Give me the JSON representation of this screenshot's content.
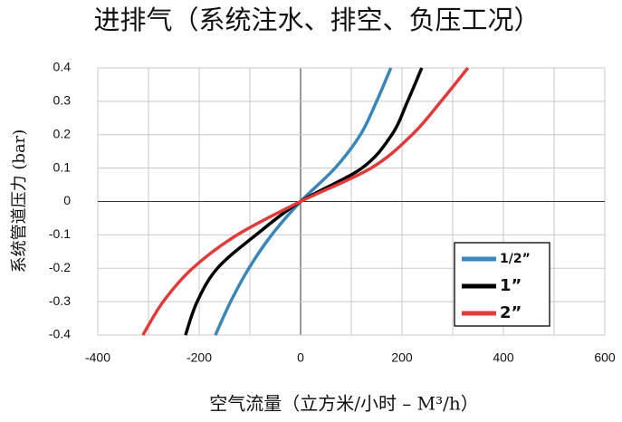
{
  "chart_data": {
    "type": "line",
    "title": "进排气（系统注水、排空、负压工况）",
    "x_label": "空气流量（立方米/小时 – M³/h）",
    "y_label": "系统管道压力 (bar)",
    "xlim": [
      -400,
      600
    ],
    "xticks": [
      -400,
      -200,
      0,
      200,
      400,
      600
    ],
    "xminor": [
      -300,
      -100,
      100,
      300,
      500
    ],
    "ylim": [
      -0.4,
      0.4
    ],
    "yticks": [
      0.4,
      0.3,
      0.2,
      0.1,
      0,
      -0.1,
      -0.2,
      -0.3,
      -0.4
    ],
    "grid": true,
    "legend": "lower right",
    "series": [
      {
        "name": "1/2”",
        "color": "#3a86b8",
        "x": [
          -168,
          -138,
          -102,
          -57,
          0,
          68,
          118,
          150,
          178
        ],
        "values": [
          -0.4,
          -0.3,
          -0.2,
          -0.1,
          0,
          0.1,
          0.2,
          0.3,
          0.4
        ]
      },
      {
        "name": "1”",
        "color": "#000000",
        "x": [
          -227,
          -204,
          -164,
          -88,
          0,
          121,
          180,
          211,
          239
        ],
        "values": [
          -0.4,
          -0.3,
          -0.2,
          -0.1,
          0,
          0.1,
          0.2,
          0.3,
          0.4
        ]
      },
      {
        "name": "2”",
        "color": "#e03a3a",
        "x": [
          -311,
          -271,
          -213,
          -125,
          0,
          139,
          220,
          277,
          330
        ],
        "values": [
          -0.4,
          -0.3,
          -0.2,
          -0.1,
          0,
          0.1,
          0.2,
          0.3,
          0.4
        ]
      }
    ]
  }
}
